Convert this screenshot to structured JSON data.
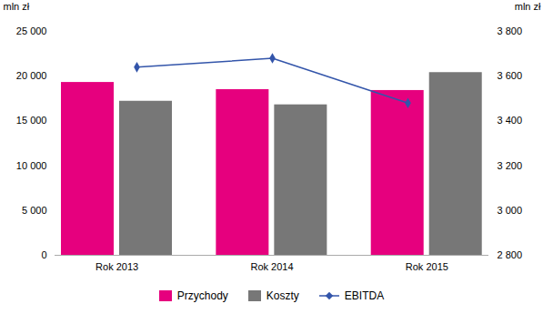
{
  "chart_data": {
    "type": "bar",
    "categories": [
      "Rok 2013",
      "Rok 2014",
      "Rok 2015"
    ],
    "series": [
      {
        "name": "Przychody",
        "color": "#E6007E",
        "values": [
          19300,
          18500,
          18400
        ]
      },
      {
        "name": "Koszty",
        "color": "#777777",
        "values": [
          17200,
          16800,
          20400
        ]
      },
      {
        "name": "EBITDA",
        "color": "#3355AA",
        "values": [
          3640,
          3680,
          3480
        ],
        "axis": "y2",
        "type": "line",
        "marker": "diamond"
      }
    ],
    "ylabel": "mln zł",
    "y2label": "mln zł",
    "ylim": [
      0,
      25000
    ],
    "yticks": [
      0,
      {
        "value": 5000,
        "label": "5 000"
      },
      {
        "value": 10000,
        "label": "10 000"
      },
      {
        "value": 15000,
        "label": "15 000"
      },
      {
        "value": 20000,
        "label": "20 000"
      },
      {
        "value": 25000,
        "label": "25 000"
      }
    ],
    "y2lim": [
      2800,
      3800
    ],
    "y2ticks": [
      {
        "value": 2800,
        "label": "2 800"
      },
      {
        "value": 3000,
        "label": "3 000"
      },
      {
        "value": 3200,
        "label": "3 200"
      },
      {
        "value": 3400,
        "label": "3 400"
      },
      {
        "value": 3600,
        "label": "3 600"
      },
      {
        "value": 3800,
        "label": "3 800"
      }
    ],
    "legend": "bottom"
  }
}
